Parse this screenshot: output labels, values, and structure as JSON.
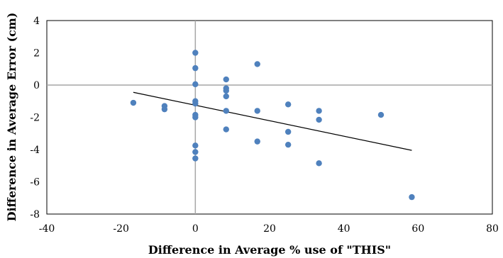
{
  "chart_data": {
    "type": "scatter",
    "title": "",
    "xlabel": "Difference in Average % use of \"THIS\"",
    "ylabel": "Difference in Average Error (cm)",
    "xlim": [
      -40,
      80
    ],
    "ylim": [
      -8,
      4
    ],
    "x_ticks": [
      "-40",
      "-20",
      "0",
      "20",
      "40",
      "60",
      "80"
    ],
    "y_ticks": [
      "4",
      "2",
      "0",
      "-2",
      "-4",
      "-6",
      "-8"
    ],
    "grid": false,
    "legend": "none",
    "colors": {
      "points": "#4f81bd",
      "trendline": "#000000",
      "zero_axes": "#a6a6a6"
    },
    "points": [
      {
        "x": -16.7,
        "y": -1.1
      },
      {
        "x": -8.3,
        "y": -1.3
      },
      {
        "x": -8.3,
        "y": -1.5
      },
      {
        "x": 0,
        "y": 2.0
      },
      {
        "x": 0,
        "y": 1.05
      },
      {
        "x": 0,
        "y": 0.05
      },
      {
        "x": 0,
        "y": -1.0
      },
      {
        "x": 0,
        "y": -1.15
      },
      {
        "x": 0,
        "y": -1.85
      },
      {
        "x": 0,
        "y": -2.0
      },
      {
        "x": 0,
        "y": -3.75
      },
      {
        "x": 0,
        "y": -4.15
      },
      {
        "x": 0,
        "y": -4.55
      },
      {
        "x": 8.3,
        "y": 0.35
      },
      {
        "x": 8.3,
        "y": -0.2
      },
      {
        "x": 8.3,
        "y": -0.35
      },
      {
        "x": 8.3,
        "y": -0.7
      },
      {
        "x": 8.3,
        "y": -1.6
      },
      {
        "x": 8.3,
        "y": -2.75
      },
      {
        "x": 16.7,
        "y": 1.3
      },
      {
        "x": 16.7,
        "y": -1.6
      },
      {
        "x": 16.7,
        "y": -3.5
      },
      {
        "x": 25,
        "y": -1.2
      },
      {
        "x": 25,
        "y": -2.9
      },
      {
        "x": 25,
        "y": -3.7
      },
      {
        "x": 33.3,
        "y": -1.6
      },
      {
        "x": 33.3,
        "y": -2.15
      },
      {
        "x": 33.3,
        "y": -4.85
      },
      {
        "x": 50,
        "y": -1.85
      },
      {
        "x": 58.3,
        "y": -6.95
      }
    ],
    "trendline": {
      "x": [
        -16.7,
        58.3
      ],
      "y": [
        -0.45,
        -4.05
      ]
    }
  }
}
